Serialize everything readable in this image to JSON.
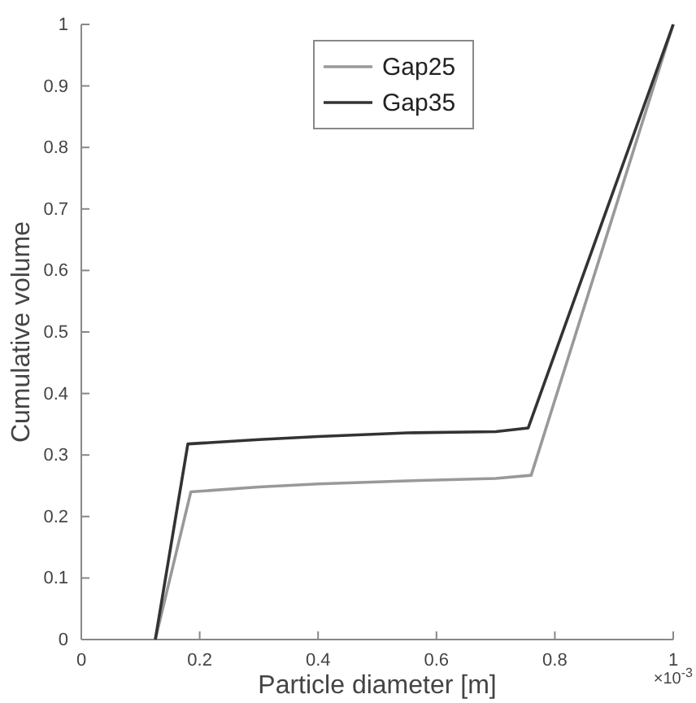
{
  "chart_data": {
    "type": "line",
    "xlabel": "Particle diameter [m]",
    "ylabel": "Cumulative volume",
    "xlim": [
      0,
      1
    ],
    "xticks": [
      0,
      0.2,
      0.4,
      0.6,
      0.8,
      1
    ],
    "ylim": [
      0,
      1
    ],
    "yticks": [
      0,
      0.1,
      0.2,
      0.3,
      0.4,
      0.5,
      0.6,
      0.7,
      0.8,
      0.9,
      1
    ],
    "annotations": [
      "×10$^{-3}$"
    ],
    "legend": "top",
    "grid": false,
    "marker": "none",
    "line_style": "solid",
    "series": [
      {
        "name": "Gap25",
        "color": "#999999",
        "x": [
          0.125,
          0.185,
          0.3,
          0.4,
          0.55,
          0.7,
          0.76,
          1
        ],
        "values": [
          0,
          0.24,
          0.248,
          0.253,
          0.258,
          0.262,
          0.267,
          1
        ]
      },
      {
        "name": "Gap35",
        "color": "#333333",
        "x": [
          0.125,
          0.18,
          0.3,
          0.4,
          0.55,
          0.7,
          0.755,
          1
        ],
        "values": [
          0,
          0.318,
          0.325,
          0.33,
          0.336,
          0.338,
          0.344,
          1
        ]
      }
    ]
  }
}
